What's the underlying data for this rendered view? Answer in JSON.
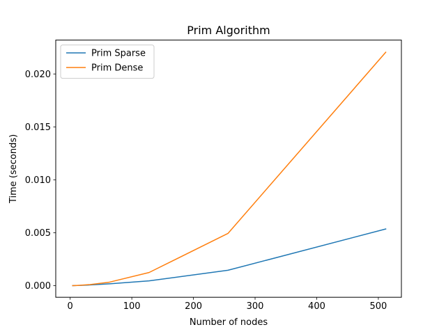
{
  "chart_data": {
    "type": "line",
    "title": "Prim Algorithm",
    "xlabel": "Number of nodes",
    "ylabel": "Time (seconds)",
    "xlim": [
      -23.4,
      537.4
    ],
    "ylim": [
      -0.0011,
      0.0232
    ],
    "x_ticks": [
      0,
      100,
      200,
      300,
      400,
      500
    ],
    "x_tick_labels": [
      "0",
      "100",
      "200",
      "300",
      "400",
      "500"
    ],
    "y_ticks": [
      0.0,
      0.005,
      0.01,
      0.015,
      0.02
    ],
    "y_tick_labels": [
      "0.000",
      "0.005",
      "0.010",
      "0.015",
      "0.020"
    ],
    "grid": false,
    "legend_position": "top-left",
    "series": [
      {
        "name": "Prim Sparse",
        "color": "#1f77b4",
        "x": [
          4,
          8,
          16,
          32,
          64,
          128,
          256,
          512
        ],
        "y": [
          0.0,
          1e-05,
          2e-05,
          6e-05,
          0.00017,
          0.00045,
          0.00145,
          0.00535
        ]
      },
      {
        "name": "Prim Dense",
        "color": "#ff7f0e",
        "x": [
          4,
          8,
          16,
          32,
          64,
          128,
          256,
          512
        ],
        "y": [
          0.0,
          1e-05,
          3e-05,
          0.0001,
          0.00033,
          0.00124,
          0.00493,
          0.02205
        ]
      }
    ]
  }
}
